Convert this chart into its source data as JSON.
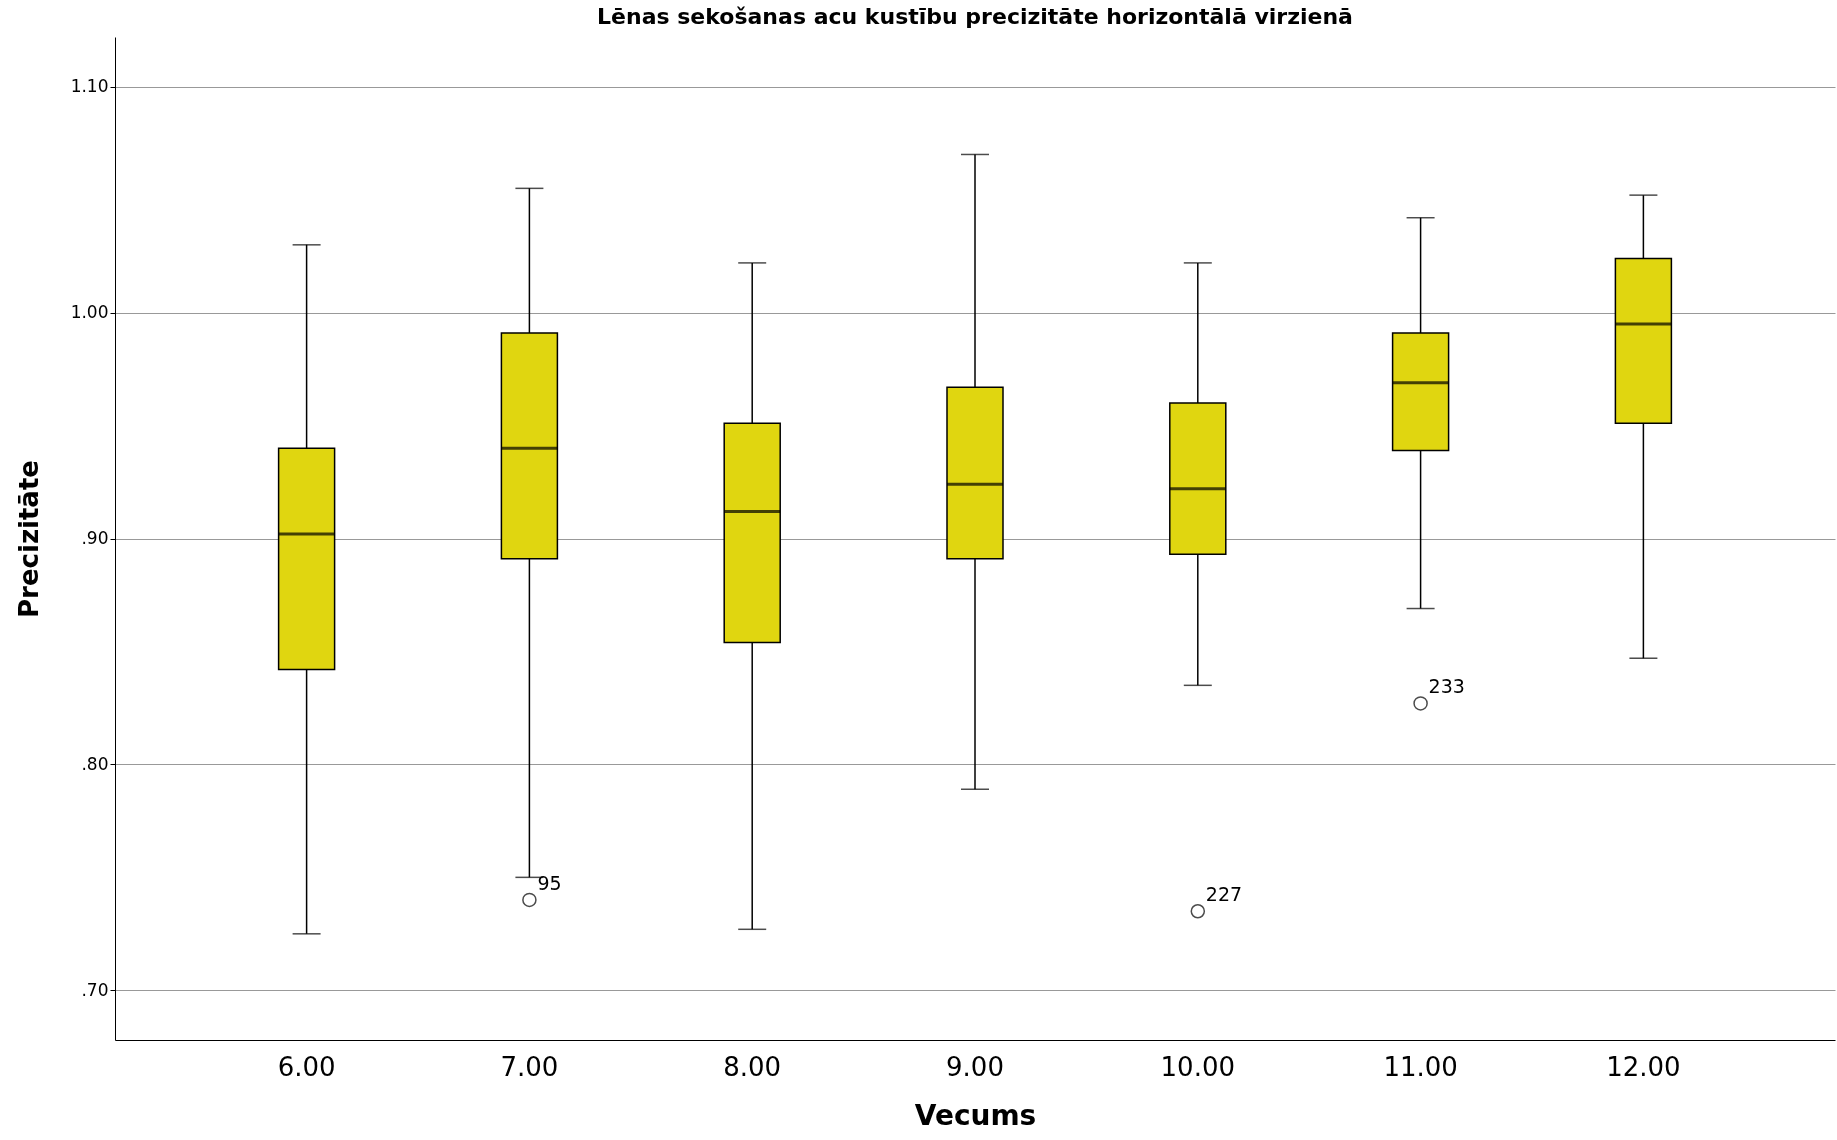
{
  "chart_data": {
    "type": "box",
    "title": "Lēnas sekošanas acu kustību precizitāte horizontālā virzienā",
    "xlabel": "Vecums",
    "ylabel": "Precizitāte",
    "categories": [
      "6.00",
      "7.00",
      "8.00",
      "9.00",
      "10.00",
      "11.00",
      "12.00"
    ],
    "color": "#e0d610",
    "boxes": [
      {
        "low": 0.725,
        "q1": 0.842,
        "median": 0.902,
        "q3": 0.94,
        "high": 1.03
      },
      {
        "low": 0.75,
        "q1": 0.891,
        "median": 0.94,
        "q3": 0.991,
        "high": 1.055,
        "outliers": [
          0.74
        ]
      },
      {
        "low": 0.727,
        "q1": 0.854,
        "median": 0.912,
        "q3": 0.951,
        "high": 1.022
      },
      {
        "low": 0.789,
        "q1": 0.891,
        "median": 0.924,
        "q3": 0.967,
        "high": 1.07
      },
      {
        "low": 0.835,
        "q1": 0.893,
        "median": 0.922,
        "q3": 0.96,
        "high": 1.022,
        "outliers": [
          0.735
        ]
      },
      {
        "low": 0.869,
        "q1": 0.939,
        "median": 0.969,
        "q3": 0.991,
        "high": 1.042,
        "outliers": [
          0.827
        ]
      },
      {
        "low": 0.847,
        "q1": 0.951,
        "median": 0.995,
        "q3": 1.024,
        "high": 1.052
      }
    ],
    "ylim": [
      0.678,
      1.122
    ],
    "yticks": [
      {
        "value": 0.7,
        "label": ".70"
      },
      {
        "value": 0.8,
        "label": ".80"
      },
      {
        "value": 0.9,
        "label": ".90"
      },
      {
        "value": 1.0,
        "label": "1.00"
      },
      {
        "value": 1.1,
        "label": "1.10"
      }
    ],
    "grid": "y",
    "annotations": [
      "95",
      "227",
      "233"
    ]
  }
}
